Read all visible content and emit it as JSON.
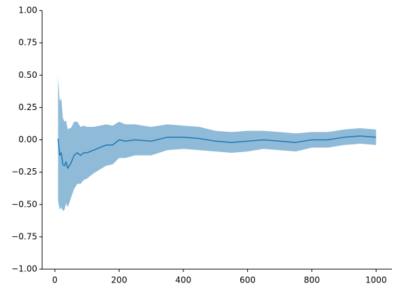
{
  "chart_data": {
    "type": "line",
    "x": [
      10,
      15,
      20,
      25,
      30,
      35,
      40,
      45,
      50,
      60,
      70,
      80,
      90,
      100,
      120,
      140,
      160,
      180,
      200,
      220,
      250,
      300,
      350,
      400,
      450,
      500,
      550,
      600,
      650,
      700,
      750,
      800,
      850,
      900,
      950,
      1000
    ],
    "series": [
      {
        "color": "#1f77b4",
        "values": [
          0.01,
          -0.12,
          -0.1,
          -0.19,
          -0.2,
          -0.17,
          -0.22,
          -0.2,
          -0.18,
          -0.12,
          -0.1,
          -0.12,
          -0.1,
          -0.1,
          -0.08,
          -0.06,
          -0.04,
          -0.04,
          0.0,
          -0.01,
          0.0,
          -0.01,
          0.02,
          0.02,
          0.01,
          -0.01,
          -0.02,
          -0.01,
          0.0,
          -0.01,
          -0.02,
          0.0,
          0.0,
          0.02,
          0.03,
          0.02
        ]
      }
    ],
    "band": {
      "color": "#8fbbd9",
      "upper": [
        0.49,
        0.3,
        0.32,
        0.17,
        0.14,
        0.15,
        0.08,
        0.09,
        0.09,
        0.14,
        0.14,
        0.1,
        0.11,
        0.1,
        0.1,
        0.11,
        0.12,
        0.11,
        0.14,
        0.12,
        0.12,
        0.1,
        0.12,
        0.11,
        0.1,
        0.07,
        0.06,
        0.07,
        0.07,
        0.06,
        0.05,
        0.06,
        0.06,
        0.08,
        0.09,
        0.08
      ],
      "lower": [
        -0.47,
        -0.54,
        -0.52,
        -0.55,
        -0.54,
        -0.49,
        -0.52,
        -0.49,
        -0.45,
        -0.38,
        -0.34,
        -0.34,
        -0.31,
        -0.3,
        -0.26,
        -0.23,
        -0.2,
        -0.19,
        -0.14,
        -0.14,
        -0.12,
        -0.12,
        -0.08,
        -0.07,
        -0.08,
        -0.09,
        -0.1,
        -0.09,
        -0.07,
        -0.08,
        -0.09,
        -0.06,
        -0.06,
        -0.04,
        -0.03,
        -0.04
      ]
    },
    "xlim": [
      -39.5,
      1049.5
    ],
    "xticks": [
      0,
      200,
      400,
      600,
      800,
      1000
    ],
    "ylim": [
      -1,
      1
    ],
    "yticks": [
      {
        "value": -1,
        "label": "−1.00"
      },
      {
        "value": -0.75,
        "label": "−0.75"
      },
      {
        "value": -0.5,
        "label": "−0.50"
      },
      {
        "value": -0.25,
        "label": "−0.25"
      },
      {
        "value": 0,
        "label": "0.00"
      },
      {
        "value": 0.25,
        "label": "0.25"
      },
      {
        "value": 0.5,
        "label": "0.50"
      },
      {
        "value": 0.75,
        "label": "0.75"
      },
      {
        "value": 1,
        "label": "1.00"
      }
    ],
    "grid": false
  }
}
